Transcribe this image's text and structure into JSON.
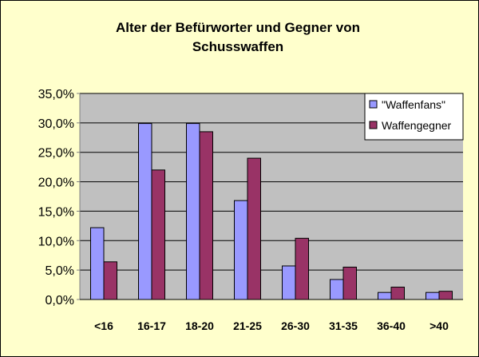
{
  "chart_data": {
    "type": "bar",
    "title": "Alter der Befürworter und Gegner von Schusswaffen",
    "title_lines": [
      "Alter der Befürworter und Gegner von",
      "Schusswaffen"
    ],
    "categories": [
      "<16",
      "16-17",
      "18-20",
      "21-25",
      "26-30",
      "31-35",
      "36-40",
      ">40"
    ],
    "series": [
      {
        "name": "\"Waffenfans\"",
        "color": "#9999FF",
        "values": [
          12.2,
          29.9,
          29.9,
          16.8,
          5.7,
          3.4,
          1.2,
          1.2
        ]
      },
      {
        "name": "Waffengegner",
        "color": "#993366",
        "values": [
          6.4,
          22.0,
          28.5,
          24.0,
          10.4,
          5.5,
          2.1,
          1.4
        ]
      }
    ],
    "ylim": [
      0,
      35
    ],
    "yticks": [
      0,
      5,
      10,
      15,
      20,
      25,
      30,
      35
    ],
    "ytick_labels": [
      "0,0%",
      "5,0%",
      "10,0%",
      "15,0%",
      "20,0%",
      "25,0%",
      "30,0%",
      "35,0%"
    ],
    "xlabel": "",
    "ylabel": "",
    "grid": true,
    "legend_position": "top-right",
    "plot_background": "#C0C0C0",
    "page_background": "#FFFFCC"
  }
}
